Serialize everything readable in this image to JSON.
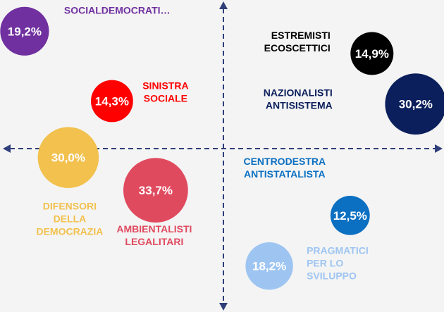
{
  "chart_data": {
    "type": "scatter",
    "subtype": "bubble-positioning-map",
    "title": "",
    "xlabel": "",
    "ylabel": "",
    "xlim": [
      -10,
      10
    ],
    "ylim": [
      -10,
      10
    ],
    "grid": false,
    "axes_style": "dashed arrows through center",
    "points": [
      {
        "name": "SOCIALDEMOCRATI…",
        "lines": [
          "SOCIALDEMOCRATI…"
        ],
        "value": 19.2,
        "value_label": "19,2%",
        "x": -9.1,
        "y": 7.9,
        "color": "#7030a0",
        "label_color": "#7030a0",
        "value_color": "#ffffff"
      },
      {
        "name": "SINISTRA SOCIALE",
        "lines": [
          "SINISTRA",
          "SOCIALE"
        ],
        "value": 14.3,
        "value_label": "14,3%",
        "x": -5.1,
        "y": 3.2,
        "color": "#ff0000",
        "label_color": "#ff0000",
        "value_color": "#ffffff"
      },
      {
        "name": "DIFENSORI DELLA DEMOCRAZIA",
        "lines": [
          "DIFENSORI",
          "DELLA",
          "DEMOCRAZIA"
        ],
        "value": 30.0,
        "value_label": "30,0%",
        "x": -7.1,
        "y": -0.6,
        "color": "#f2c14e",
        "label_color": "#f2c14e",
        "value_color": "#ffffff"
      },
      {
        "name": "AMBIENTALISTI LEGALITARI",
        "lines": [
          "AMBIENTALISTI",
          "LEGALITARI"
        ],
        "value": 33.7,
        "value_label": "33,7%",
        "x": -3.1,
        "y": -2.8,
        "color": "#e04a5f",
        "label_color": "#e04a5f",
        "value_color": "#ffffff"
      },
      {
        "name": "ESTREMISTI ECOSCETTICI",
        "lines": [
          "ESTREMISTI",
          "ECOSCETTICI"
        ],
        "value": 14.9,
        "value_label": "14,9%",
        "x": 6.8,
        "y": 6.4,
        "color": "#000000",
        "label_color": "#000000",
        "value_color": "#ffffff"
      },
      {
        "name": "NAZIONALISTI ANTISISTEMA",
        "lines": [
          "NAZIONALISTI",
          "ANTISISTEMA"
        ],
        "value": 30.2,
        "value_label": "30,2%",
        "x": 8.8,
        "y": 3.0,
        "color": "#0b1f5c",
        "label_color": "#0b1f5c",
        "value_color": "#ffffff"
      },
      {
        "name": "CENTRODESTRA ANTISTATALISTA",
        "lines": [
          "CENTRODESTRA",
          "ANTISTATALISTA"
        ],
        "value": 12.5,
        "value_label": "12,5%",
        "x": 5.8,
        "y": -4.5,
        "color": "#0b6fc2",
        "label_color": "#0b6fc2",
        "value_color": "#ffffff"
      },
      {
        "name": "PRAGMATICI PER LO SVILUPPO",
        "lines": [
          "PRAGMATICI",
          "PER LO",
          "SVILUPPO"
        ],
        "value": 18.2,
        "value_label": "18,2%",
        "x": 2.1,
        "y": -7.9,
        "color": "#9ec5f2",
        "label_color": "#9ec5f2",
        "value_color": "#ffffff"
      }
    ]
  }
}
